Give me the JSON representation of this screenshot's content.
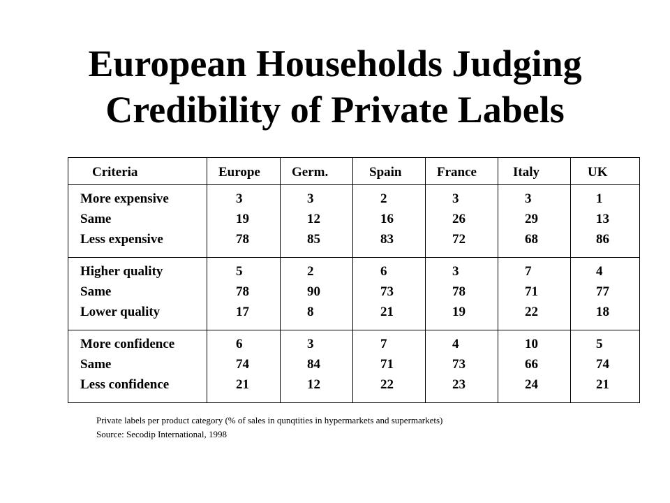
{
  "title": {
    "line1": "European Households Judging",
    "line2": "Credibility of Private Labels"
  },
  "table": {
    "headers": [
      "Criteria",
      "Europe",
      "Germ.",
      "Spain",
      "France",
      "Italy",
      "UK"
    ],
    "groups": [
      {
        "rows": [
          {
            "label": "More expensive",
            "values": [
              "3",
              "3",
              "2",
              "3",
              "3",
              "1"
            ]
          },
          {
            "label": "Same",
            "values": [
              "19",
              "12",
              "16",
              "26",
              "29",
              "13"
            ]
          },
          {
            "label": "Less expensive",
            "values": [
              "78",
              "85",
              "83",
              "72",
              "68",
              "86"
            ]
          }
        ]
      },
      {
        "rows": [
          {
            "label": "Higher quality",
            "values": [
              "5",
              "2",
              "6",
              "3",
              "7",
              "4"
            ]
          },
          {
            "label": "Same",
            "values": [
              "78",
              "90",
              "73",
              "78",
              "71",
              "77"
            ]
          },
          {
            "label": "Lower quality",
            "values": [
              "17",
              "8",
              "21",
              "19",
              "22",
              "18"
            ]
          }
        ]
      },
      {
        "rows": [
          {
            "label": "More confidence",
            "values": [
              "6",
              "3",
              "7",
              "4",
              "10",
              "5"
            ]
          },
          {
            "label": "Same",
            "values": [
              "74",
              "84",
              "71",
              "73",
              "66",
              "74"
            ]
          },
          {
            "label": "Less confidence",
            "values": [
              "21",
              "12",
              "22",
              "23",
              "24",
              "21"
            ]
          }
        ]
      }
    ]
  },
  "footer": {
    "note": "Private labels per product category (% of sales in qunqtities in hypermarkets and supermarkets)",
    "source": "Source: Secodip International, 1998"
  }
}
